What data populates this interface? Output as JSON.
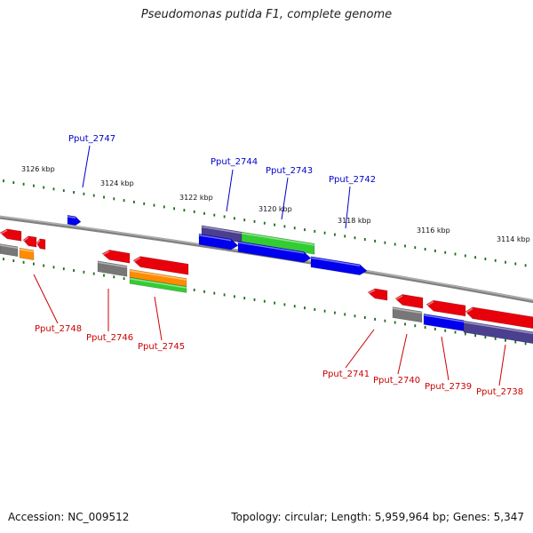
{
  "title": "Pseudomonas putida F1, complete genome",
  "footer": {
    "accession": "Accession: NC_009512",
    "topology": "Topology: circular; Length: 5,959,964 bp; Genes: 5,347"
  },
  "colors": {
    "plus_label": "#0000cc",
    "minus_label": "#cc0000",
    "tick": "#1a6e1a",
    "backbone": "#808080",
    "red": "#e8000b",
    "blue": "#0000ee",
    "green": "#33cc33",
    "gray": "#777777",
    "orange": "#ff8c00",
    "navy": "#4b3f8f"
  },
  "scale_labels": [
    "3126 kbp",
    "3124 kbp",
    "3122 kbp",
    "3120 kbp",
    "3118 kbp",
    "3116 kbp",
    "3114 kbp"
  ],
  "plus_labels": [
    "Pput_2747",
    "Pput_2744",
    "Pput_2743",
    "Pput_2742"
  ],
  "minus_labels": [
    "Pput_2748",
    "Pput_2746",
    "Pput_2745",
    "Pput_2741",
    "Pput_2740",
    "Pput_2739",
    "Pput_2738"
  ]
}
